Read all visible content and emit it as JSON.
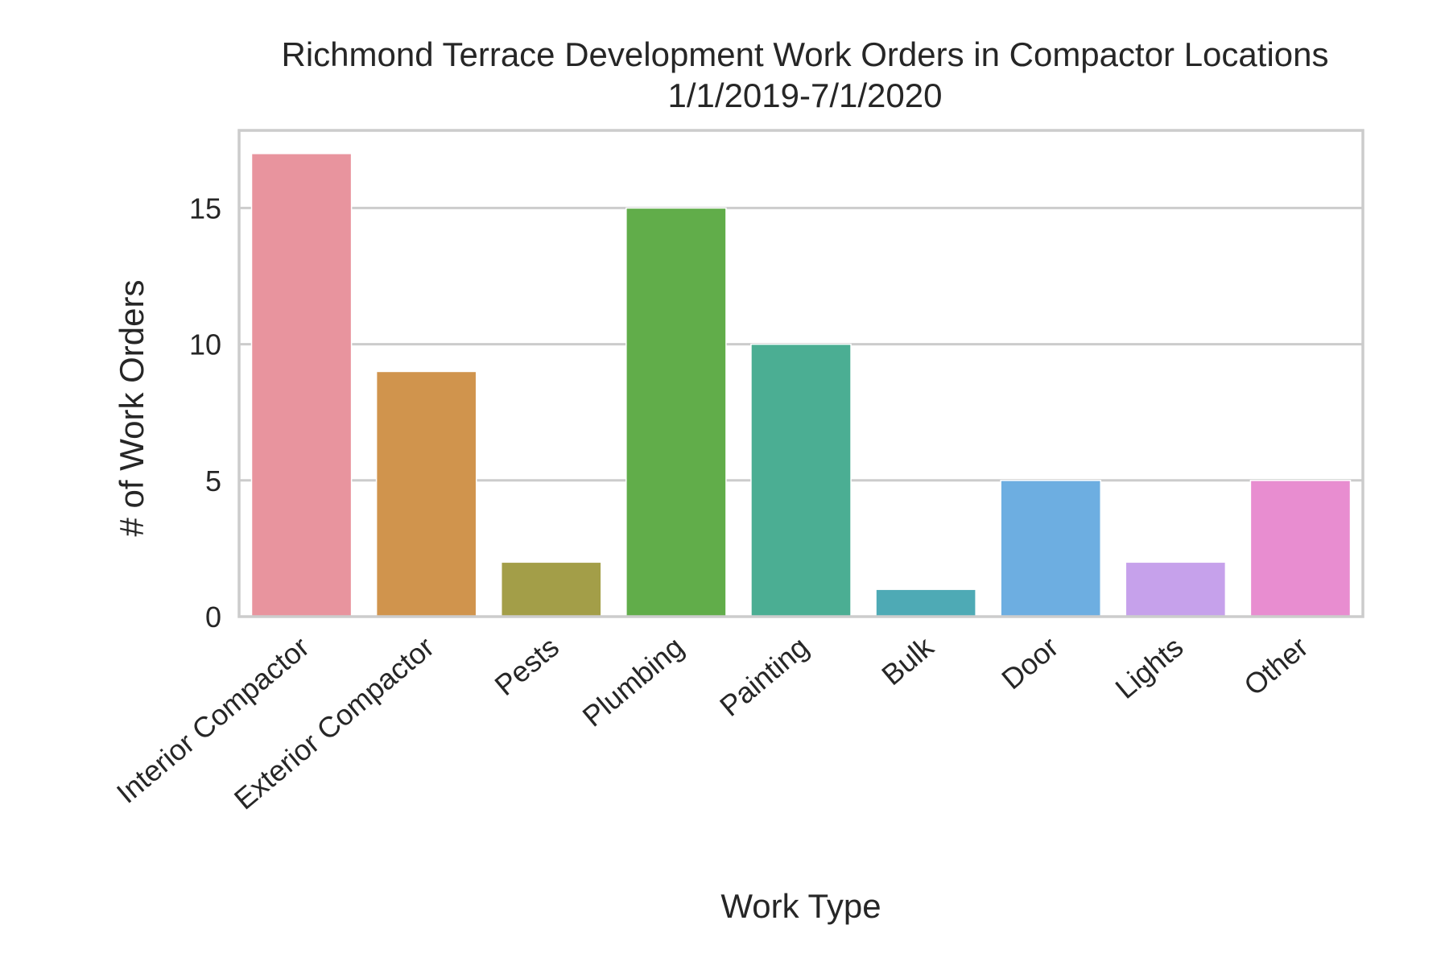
{
  "chart_data": {
    "type": "bar",
    "title": "Richmond Terrace Development Work Orders in Compactor Locations",
    "subtitle": "1/1/2019-7/1/2020",
    "xlabel": "Work Type",
    "ylabel": "# of Work Orders",
    "categories": [
      "Interior Compactor",
      "Exterior Compactor",
      "Pests",
      "Plumbing",
      "Painting",
      "Bulk",
      "Door",
      "Lights",
      "Other"
    ],
    "values": [
      17,
      9,
      2,
      15,
      10,
      1,
      5,
      2,
      5
    ],
    "colors": [
      "#e8949e",
      "#d0944d",
      "#a39e48",
      "#61ad4a",
      "#4bae93",
      "#4eaab5",
      "#6daee1",
      "#c6a1eb",
      "#e88dd0"
    ],
    "yticks": [
      0,
      5,
      10,
      15
    ],
    "ylim": [
      0,
      17.85
    ],
    "grid": true,
    "legend": "none"
  }
}
